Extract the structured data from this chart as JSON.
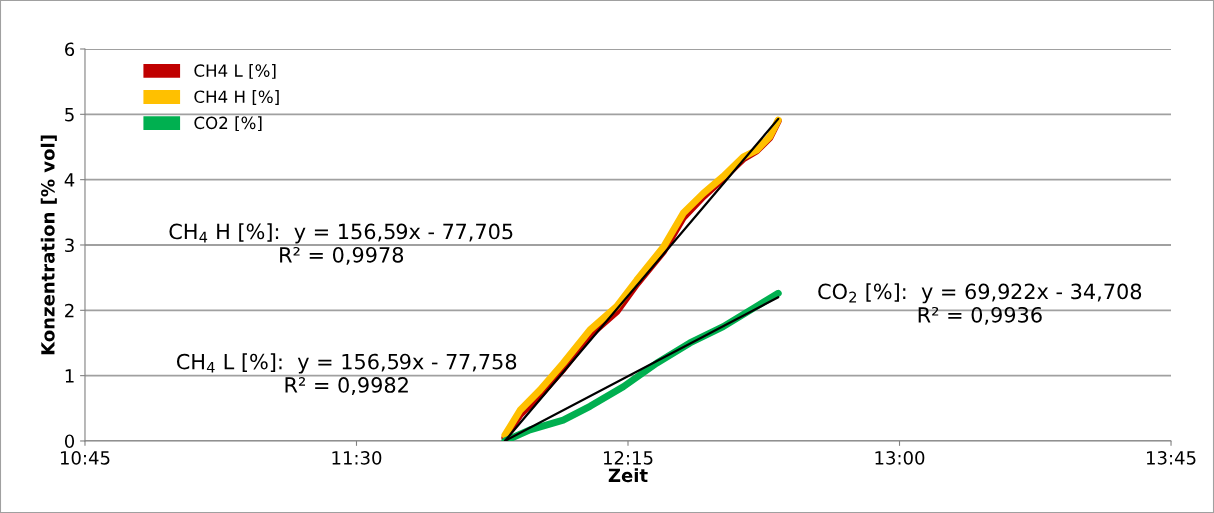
{
  "chart_data": {
    "type": "line",
    "xlabel": "Zeit",
    "ylabel": "Konzentration [% vol]",
    "xlim": [
      10.75,
      13.75
    ],
    "xticks": [
      {
        "value": 10.75,
        "label": "10:45"
      },
      {
        "value": 11.5,
        "label": "11:30"
      },
      {
        "value": 12.25,
        "label": "12:15"
      },
      {
        "value": 13.0,
        "label": "13:00"
      },
      {
        "value": 13.75,
        "label": "13:45"
      }
    ],
    "ylim": [
      0,
      6
    ],
    "yticks": [
      0,
      1,
      2,
      3,
      4,
      5,
      6
    ],
    "grid": "y",
    "legend": "top left",
    "marker": "none",
    "line_style": "solid",
    "series": [
      {
        "name": "CH4 L [%]",
        "color": "#c00000",
        "x": [
          11.91,
          11.952,
          12.007,
          12.071,
          12.145,
          12.219,
          12.274,
          12.348,
          12.403,
          12.458,
          12.513,
          12.569,
          12.605,
          12.642,
          12.665
        ],
        "values": [
          0.05,
          0.4,
          0.7,
          1.1,
          1.62,
          1.98,
          2.4,
          2.9,
          3.42,
          3.74,
          4.02,
          4.32,
          4.44,
          4.64,
          4.9
        ]
      },
      {
        "name": "CH4 H [%]",
        "color": "#ffc000",
        "x": [
          11.91,
          11.952,
          12.007,
          12.071,
          12.145,
          12.219,
          12.274,
          12.348,
          12.403,
          12.458,
          12.513,
          12.569,
          12.605,
          12.642,
          12.665
        ],
        "values": [
          0.09,
          0.47,
          0.78,
          1.19,
          1.7,
          2.06,
          2.46,
          2.97,
          3.49,
          3.79,
          4.05,
          4.35,
          4.45,
          4.66,
          4.91
        ]
      },
      {
        "name": "CO2 [%]",
        "color": "#00b050",
        "x": [
          11.91,
          11.979,
          12.071,
          12.145,
          12.237,
          12.329,
          12.421,
          12.513,
          12.605,
          12.665
        ],
        "values": [
          0.0,
          0.17,
          0.32,
          0.53,
          0.83,
          1.19,
          1.5,
          1.75,
          2.06,
          2.26
        ]
      },
      {
        "color": "#000000",
        "x": [
          11.91,
          12.665
        ],
        "values": [
          0.0,
          4.93
        ]
      },
      {
        "color": "#000000",
        "x": [
          11.91,
          12.665
        ],
        "values": [
          0.0,
          2.2
        ]
      }
    ],
    "annotations": [
      "CH$_{4}$ H [%]:  y = 156,59x - 77,705\nR² = 0,9978",
      "CH$_{4}$ L [%]:  y = 156,59x - 77,758\nR² = 0,9982",
      "CO$_{2}$ [%]:  y = 69,922x - 34,708\nR² = 0,9936"
    ]
  }
}
